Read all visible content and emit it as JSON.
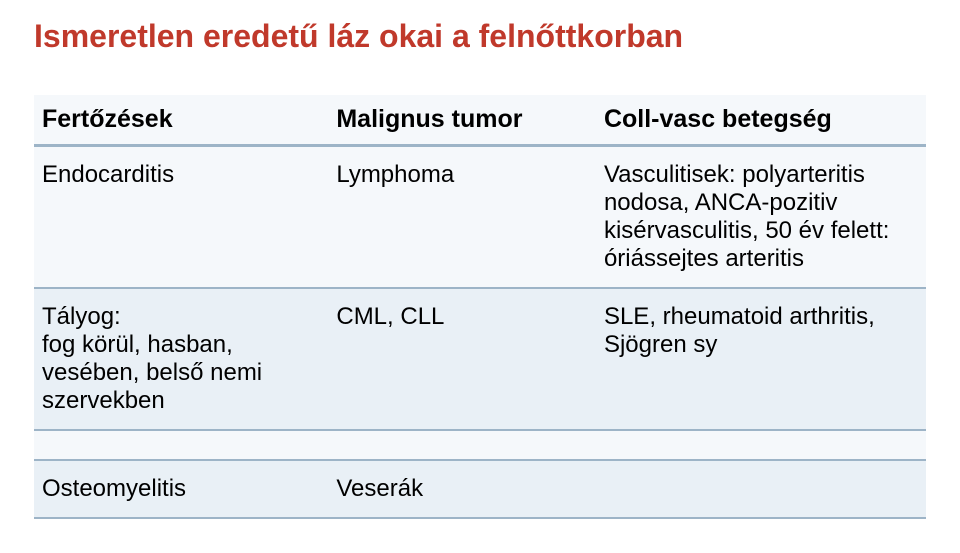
{
  "title": "Ismeretlen eredetű láz okai a felnőttkorban",
  "table": {
    "header_bg": "#f5f8fb",
    "row_bg": "#f5f8fb",
    "row_alt_bg": "#e9f0f6",
    "border_color": "#9db4c7",
    "title_color": "#c0392b",
    "columns": [
      "Fertőzések",
      "Malignus tumor",
      "Coll-vasc betegség"
    ],
    "rows": [
      {
        "c1": "Endocarditis",
        "c2": "Lymphoma",
        "c3": "Vasculitisek: polyarteritis nodosa, ANCA-pozitiv kisérvasculitis, 50 év felett: óriássejtes arteritis"
      },
      {
        "c1": "Tályog:\nfog körül, hasban, vesében, belső nemi szervekben",
        "c2": "CML, CLL",
        "c3": "SLE, rheumatoid arthritis, Sjögren sy"
      },
      {
        "c1": "",
        "c2": "",
        "c3": ""
      },
      {
        "c1": "Osteomyelitis",
        "c2": "Veserák",
        "c3": ""
      }
    ]
  }
}
